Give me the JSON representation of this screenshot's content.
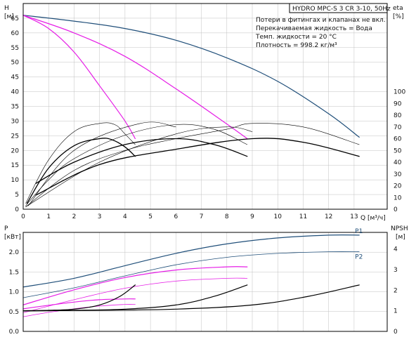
{
  "header": {
    "title": "HYDRO MPC-S 3 CR 3-10, 50Hz",
    "notes": [
      "Потери в фитингах и клапанах не вкл.",
      "Перекачиваемая жидкость = Вода",
      "Темп. жидкости = 20 °C",
      "Плотность = 998.2 кг/м³"
    ]
  },
  "axes": {
    "top_left_label": "H",
    "top_left_unit": "[м]",
    "top_right_label": "eta",
    "top_right_unit": "[%]",
    "x_label": "Q [м³/ч]",
    "bottom_left_label": "P",
    "bottom_left_unit": "[кВт]",
    "bottom_right_label": "NPSH",
    "bottom_right_unit": "[м]"
  },
  "colors": {
    "head_curve": "#1f4e79",
    "reduced_curve": "#e61ee6",
    "efficiency_curve": "#000000",
    "grid": "#c0c0c0"
  },
  "chart_data": [
    {
      "type": "line",
      "panel": "head-efficiency",
      "x_ticks": [
        0,
        1,
        2,
        3,
        4,
        5,
        6,
        7,
        8,
        9,
        10,
        11,
        12,
        13
      ],
      "y_ticks_left": [
        0,
        5,
        10,
        15,
        20,
        25,
        30,
        35,
        40,
        45,
        50,
        55,
        60,
        65
      ],
      "y_ticks_right": [
        0,
        10,
        20,
        30,
        40,
        50,
        60,
        70,
        80,
        90,
        100
      ],
      "xlim": [
        0,
        14.3
      ],
      "ylim_left": [
        0,
        70
      ],
      "ylim_right": [
        0,
        175
      ],
      "series": [
        {
          "kind": "head",
          "color": "#1f4e79",
          "width": 1.2,
          "x": [
            0,
            2,
            4,
            6,
            8,
            10,
            12,
            13.2
          ],
          "y": [
            66,
            64,
            61.5,
            57.5,
            51.5,
            43.5,
            32.5,
            24.5
          ]
        },
        {
          "kind": "head",
          "color": "#e61ee6",
          "width": 1.2,
          "x": [
            0,
            1,
            2,
            3,
            4,
            4.4
          ],
          "y": [
            66,
            61.5,
            53.5,
            42,
            30,
            24
          ]
        },
        {
          "kind": "head",
          "color": "#e61ee6",
          "width": 1.2,
          "x": [
            0,
            2,
            4,
            6,
            8,
            8.8
          ],
          "y": [
            66,
            60,
            52,
            41,
            29,
            24
          ]
        },
        {
          "kind": "efficiency",
          "color": "#000000",
          "width": 0.6,
          "x": [
            0.1,
            1,
            2,
            3,
            3.6,
            4,
            4.4
          ],
          "y": [
            5,
            42,
            66,
            73,
            72,
            64,
            55
          ]
        },
        {
          "kind": "efficiency",
          "color": "#000000",
          "width": 1.3,
          "x": [
            0.15,
            1,
            2,
            3,
            3.5,
            4,
            4.4
          ],
          "y": [
            5,
            35,
            54,
            60,
            59,
            53,
            45
          ]
        },
        {
          "kind": "efficiency",
          "color": "#000000",
          "width": 0.6,
          "x": [
            0.1,
            1,
            2,
            4,
            6,
            7.5,
            8.8
          ],
          "y": [
            3,
            25,
            43,
            63,
            72,
            68,
            55
          ]
        },
        {
          "kind": "efficiency",
          "color": "#000000",
          "width": 1.3,
          "x": [
            0.5,
            2,
            4,
            6,
            7.5,
            8.8
          ],
          "y": [
            22,
            40,
            55,
            60,
            55,
            45
          ]
        },
        {
          "kind": "efficiency",
          "color": "#000000",
          "width": 0.6,
          "x": [
            0.1,
            2,
            4,
            6,
            8,
            9,
            11,
            13.2
          ],
          "y": [
            2,
            33,
            50,
            60,
            68,
            73,
            70,
            55
          ]
        },
        {
          "kind": "efficiency",
          "color": "#000000",
          "width": 1.3,
          "x": [
            0.5,
            3,
            6,
            9,
            11,
            13.2
          ],
          "y": [
            12,
            38,
            51,
            60,
            57,
            45
          ]
        },
        {
          "kind": "efficiency",
          "color": "#000000",
          "width": 0.6,
          "x": [
            0.1,
            3,
            6,
            8,
            9
          ],
          "y": [
            2,
            40,
            64,
            70,
            66
          ]
        },
        {
          "kind": "efficiency",
          "color": "#000000",
          "width": 0.6,
          "x": [
            0.2,
            2,
            4.6,
            6
          ],
          "y": [
            3,
            50,
            73,
            70
          ]
        }
      ]
    },
    {
      "type": "line",
      "panel": "power-npsh",
      "x_ticks": [
        0,
        1,
        2,
        3,
        4,
        5,
        6,
        7,
        8,
        9,
        10,
        11,
        12,
        13
      ],
      "y_ticks_left": [
        0.0,
        0.5,
        1.0,
        1.5,
        2.0
      ],
      "y_ticks_right": [
        0,
        1,
        2,
        3,
        4
      ],
      "xlim": [
        0,
        14.3
      ],
      "ylim_left": [
        0,
        2.5
      ],
      "ylim_right": [
        0,
        4.8
      ],
      "series": [
        {
          "kind": "power",
          "name": "P1",
          "color": "#1f4e79",
          "width": 1.2,
          "x": [
            0,
            2,
            4,
            6,
            8,
            10,
            12,
            13.2
          ],
          "y": [
            1.12,
            1.34,
            1.66,
            1.97,
            2.21,
            2.36,
            2.43,
            2.43
          ]
        },
        {
          "kind": "power",
          "name": "P2",
          "color": "#1f4e79",
          "width": 0.8,
          "x": [
            0,
            2,
            4,
            6,
            8,
            10,
            12,
            13.2
          ],
          "y": [
            0.85,
            1.1,
            1.4,
            1.68,
            1.87,
            1.97,
            2.01,
            2.01
          ]
        },
        {
          "kind": "power",
          "color": "#e61ee6",
          "width": 1.2,
          "x": [
            0,
            2,
            4,
            6,
            8,
            8.8
          ],
          "y": [
            0.67,
            1.05,
            1.36,
            1.55,
            1.63,
            1.63
          ]
        },
        {
          "kind": "power",
          "color": "#e61ee6",
          "width": 0.8,
          "x": [
            0,
            2,
            4,
            6,
            8,
            8.8
          ],
          "y": [
            0.47,
            0.8,
            1.09,
            1.27,
            1.34,
            1.34
          ]
        },
        {
          "kind": "power",
          "color": "#e61ee6",
          "width": 1.2,
          "x": [
            0,
            1,
            2,
            3,
            4,
            4.4
          ],
          "y": [
            0.57,
            0.66,
            0.74,
            0.8,
            0.82,
            0.82
          ]
        },
        {
          "kind": "power",
          "color": "#e61ee6",
          "width": 0.8,
          "x": [
            0,
            1,
            2,
            3,
            4,
            4.4
          ],
          "y": [
            0.37,
            0.48,
            0.57,
            0.64,
            0.68,
            0.68
          ]
        },
        {
          "kind": "npsh",
          "color": "#000000",
          "width": 1.2,
          "x": [
            0,
            1,
            2,
            3,
            3.8,
            4.4
          ],
          "y": [
            1.0,
            1.02,
            1.08,
            1.28,
            1.7,
            2.25
          ]
        },
        {
          "kind": "npsh",
          "color": "#000000",
          "width": 1.2,
          "x": [
            0,
            2,
            4,
            6,
            7.5,
            8.8
          ],
          "y": [
            1.0,
            1.02,
            1.08,
            1.28,
            1.7,
            2.25
          ]
        },
        {
          "kind": "npsh",
          "color": "#000000",
          "width": 1.2,
          "x": [
            0,
            3,
            6,
            9,
            11.2,
            13.2
          ],
          "y": [
            1.0,
            1.02,
            1.08,
            1.28,
            1.7,
            2.25
          ]
        }
      ]
    }
  ]
}
